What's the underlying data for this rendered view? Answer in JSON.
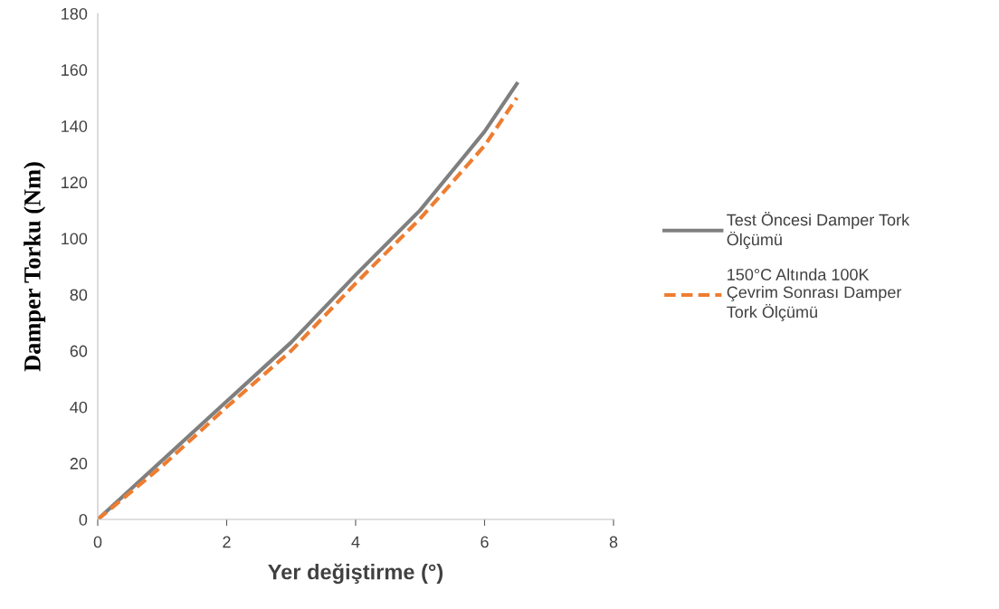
{
  "chart_data": {
    "type": "line",
    "xlabel": "Yer değiştirme (°)",
    "ylabel": "Damper Torku (Nm)",
    "xlim": [
      0,
      8
    ],
    "xticks": [
      0,
      2,
      4,
      6,
      8
    ],
    "ylim": [
      0,
      180
    ],
    "yticks": [
      0,
      20,
      40,
      60,
      80,
      100,
      120,
      140,
      160,
      180
    ],
    "grid": false,
    "legend": "right",
    "marker": "none",
    "series": [
      {
        "name": "Test Öncesi Damper Tork Ölçümü",
        "color": "#7f7f7f",
        "line_style": "solid",
        "x": [
          0,
          1,
          2,
          3,
          4,
          5,
          6,
          6.5
        ],
        "values": [
          0,
          21,
          42,
          63,
          87,
          110,
          138,
          155
        ]
      },
      {
        "name": "150°C Altında 100K Çevrim Sonrası Damper Tork Ölçümü",
        "color": "#ed7d31",
        "line_style": "dashed",
        "x": [
          0,
          1,
          2,
          3,
          4,
          5,
          6,
          6.5
        ],
        "values": [
          0,
          19,
          40,
          60,
          84,
          107,
          133,
          150
        ]
      }
    ]
  }
}
